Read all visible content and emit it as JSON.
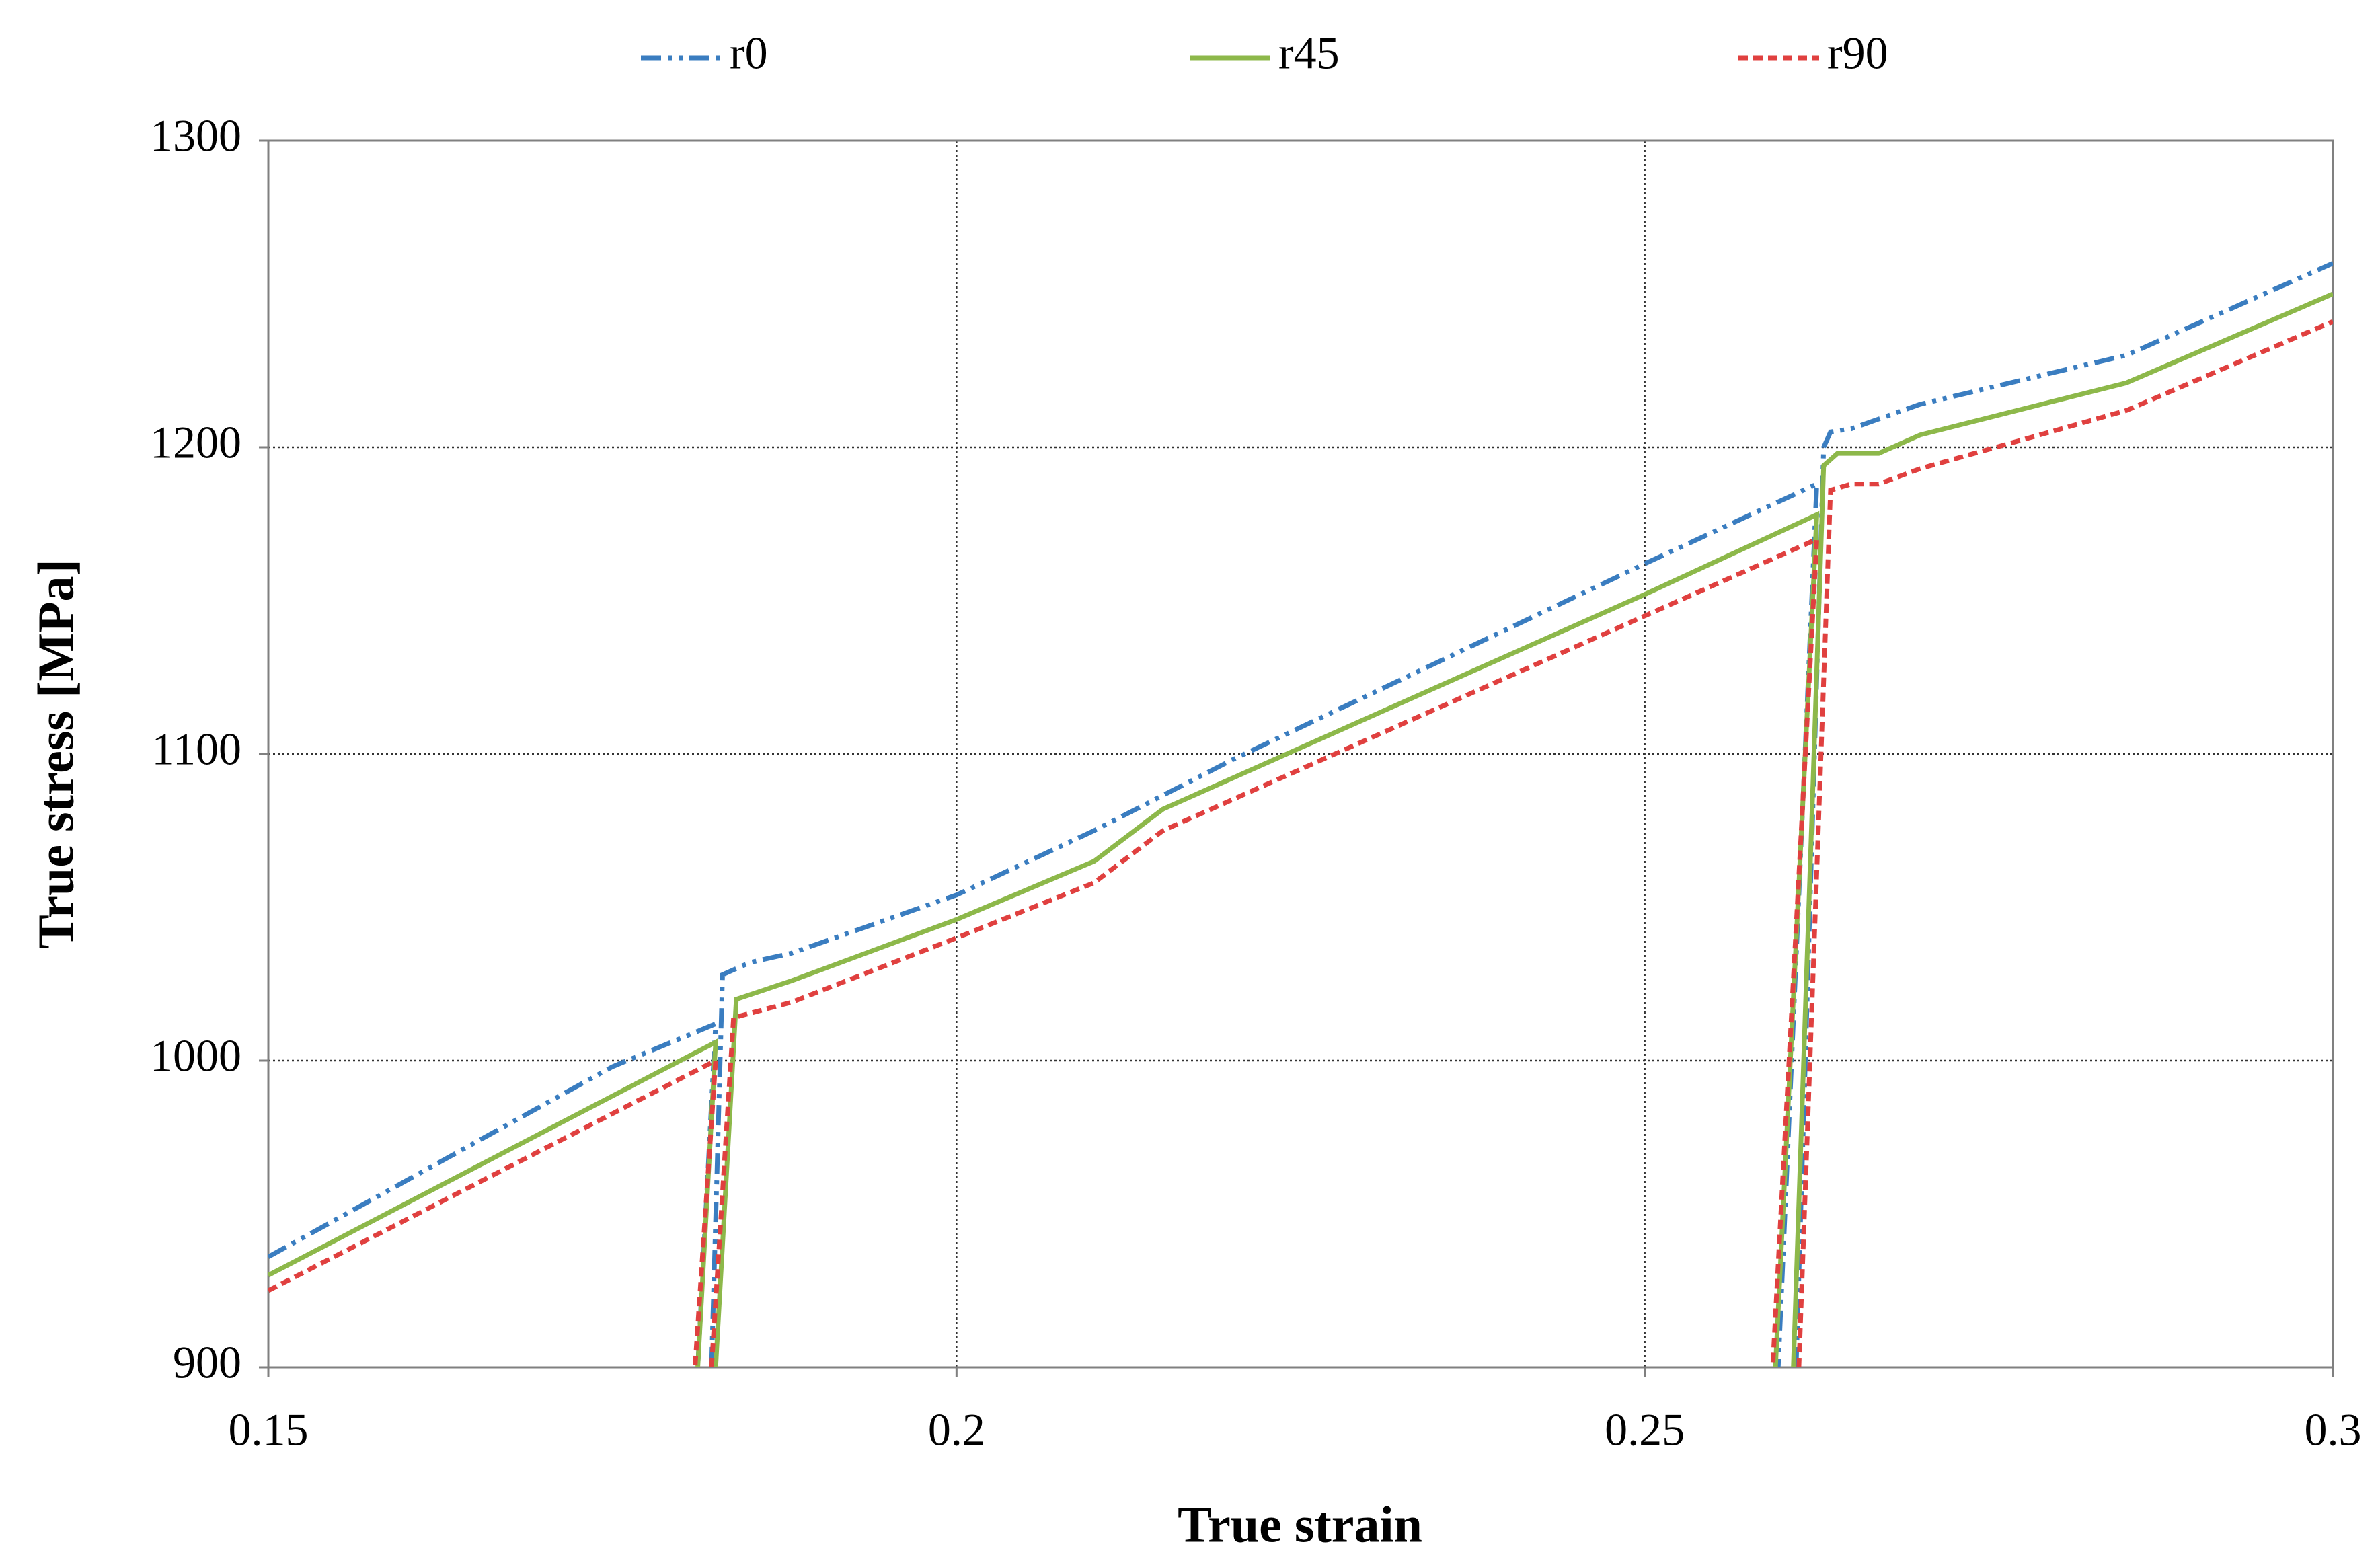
{
  "chart_data": {
    "type": "line",
    "x_label": "True strain",
    "y_label": "True stress [MPa]",
    "xlim": [
      0.15,
      0.3
    ],
    "xticks": [
      0.15,
      0.2,
      0.25,
      0.3
    ],
    "ylim": [
      900,
      1300
    ],
    "yticks": [
      900,
      1000,
      1100,
      1200,
      1300
    ],
    "grid": true,
    "legend": "top",
    "series": [
      {
        "name": "r0",
        "color": "#3a7dc0",
        "dash": "dash-dot-dot",
        "x": [
          0.15,
          0.175,
          0.1825,
          0.1812,
          null,
          0.1822,
          0.183,
          0.185,
          0.188,
          0.2,
          0.21,
          0.22,
          0.25,
          0.2625,
          0.2597,
          null,
          0.261,
          0.263,
          0.2635,
          0.265,
          0.27,
          0.285,
          0.3
        ],
        "values": [
          936,
          998,
          1012,
          900,
          null,
          900,
          1028,
          1032,
          1035,
          1054,
          1075,
          1098,
          1162,
          1188,
          900,
          null,
          900,
          1200,
          1205,
          1206,
          1214,
          1230,
          1260
        ]
      },
      {
        "name": "r45",
        "color": "#8db84a",
        "dash": "solid",
        "x": [
          0.15,
          0.1825,
          0.1812,
          null,
          0.1825,
          0.184,
          0.188,
          0.2,
          0.21,
          0.215,
          0.25,
          0.2625,
          0.2595,
          null,
          0.2608,
          0.263,
          0.264,
          0.267,
          0.27,
          0.285,
          0.3
        ],
        "values": [
          930,
          1006,
          900,
          null,
          900,
          1020,
          1026,
          1046,
          1065,
          1082,
          1152,
          1178,
          900,
          null,
          900,
          1194,
          1198,
          1198,
          1204,
          1221,
          1250
        ]
      },
      {
        "name": "r90",
        "color": "#e0403f",
        "dash": "dashed",
        "x": [
          0.15,
          0.1825,
          0.181,
          null,
          0.1822,
          0.1838,
          0.188,
          0.2,
          0.21,
          0.215,
          0.25,
          0.2625,
          0.2593,
          null,
          0.2612,
          0.2635,
          0.265,
          0.267,
          0.27,
          0.285,
          0.3
        ],
        "values": [
          925,
          1000,
          900,
          null,
          900,
          1014,
          1019,
          1040,
          1058,
          1075,
          1145,
          1170,
          900,
          null,
          900,
          1186,
          1188,
          1188,
          1193,
          1212,
          1241
        ]
      }
    ]
  }
}
